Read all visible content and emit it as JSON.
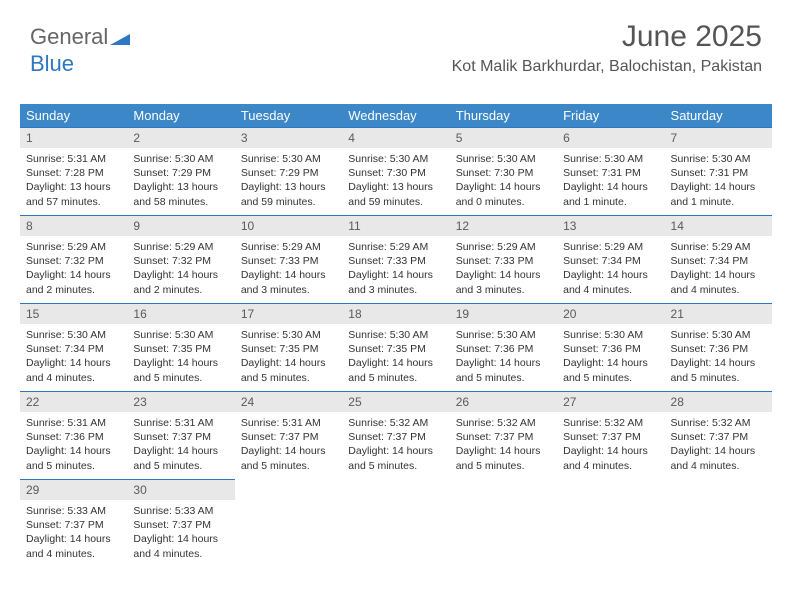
{
  "logo": {
    "text1": "General",
    "text2": "Blue"
  },
  "header": {
    "month": "June 2025",
    "location": "Kot Malik Barkhurdar, Balochistan, Pakistan"
  },
  "colors": {
    "header_bg": "#3b87c8",
    "header_fg": "#ffffff",
    "daynum_bg": "#e8e8e8",
    "daynum_border": "#2e78c2",
    "text": "#333333",
    "logo_gray": "#666666",
    "logo_blue": "#2e78c2"
  },
  "weekdays": [
    "Sunday",
    "Monday",
    "Tuesday",
    "Wednesday",
    "Thursday",
    "Friday",
    "Saturday"
  ],
  "days": [
    {
      "n": "1",
      "sr": "5:31 AM",
      "ss": "7:28 PM",
      "dl": "13 hours and 57 minutes."
    },
    {
      "n": "2",
      "sr": "5:30 AM",
      "ss": "7:29 PM",
      "dl": "13 hours and 58 minutes."
    },
    {
      "n": "3",
      "sr": "5:30 AM",
      "ss": "7:29 PM",
      "dl": "13 hours and 59 minutes."
    },
    {
      "n": "4",
      "sr": "5:30 AM",
      "ss": "7:30 PM",
      "dl": "13 hours and 59 minutes."
    },
    {
      "n": "5",
      "sr": "5:30 AM",
      "ss": "7:30 PM",
      "dl": "14 hours and 0 minutes."
    },
    {
      "n": "6",
      "sr": "5:30 AM",
      "ss": "7:31 PM",
      "dl": "14 hours and 1 minute."
    },
    {
      "n": "7",
      "sr": "5:30 AM",
      "ss": "7:31 PM",
      "dl": "14 hours and 1 minute."
    },
    {
      "n": "8",
      "sr": "5:29 AM",
      "ss": "7:32 PM",
      "dl": "14 hours and 2 minutes."
    },
    {
      "n": "9",
      "sr": "5:29 AM",
      "ss": "7:32 PM",
      "dl": "14 hours and 2 minutes."
    },
    {
      "n": "10",
      "sr": "5:29 AM",
      "ss": "7:33 PM",
      "dl": "14 hours and 3 minutes."
    },
    {
      "n": "11",
      "sr": "5:29 AM",
      "ss": "7:33 PM",
      "dl": "14 hours and 3 minutes."
    },
    {
      "n": "12",
      "sr": "5:29 AM",
      "ss": "7:33 PM",
      "dl": "14 hours and 3 minutes."
    },
    {
      "n": "13",
      "sr": "5:29 AM",
      "ss": "7:34 PM",
      "dl": "14 hours and 4 minutes."
    },
    {
      "n": "14",
      "sr": "5:29 AM",
      "ss": "7:34 PM",
      "dl": "14 hours and 4 minutes."
    },
    {
      "n": "15",
      "sr": "5:30 AM",
      "ss": "7:34 PM",
      "dl": "14 hours and 4 minutes."
    },
    {
      "n": "16",
      "sr": "5:30 AM",
      "ss": "7:35 PM",
      "dl": "14 hours and 5 minutes."
    },
    {
      "n": "17",
      "sr": "5:30 AM",
      "ss": "7:35 PM",
      "dl": "14 hours and 5 minutes."
    },
    {
      "n": "18",
      "sr": "5:30 AM",
      "ss": "7:35 PM",
      "dl": "14 hours and 5 minutes."
    },
    {
      "n": "19",
      "sr": "5:30 AM",
      "ss": "7:36 PM",
      "dl": "14 hours and 5 minutes."
    },
    {
      "n": "20",
      "sr": "5:30 AM",
      "ss": "7:36 PM",
      "dl": "14 hours and 5 minutes."
    },
    {
      "n": "21",
      "sr": "5:30 AM",
      "ss": "7:36 PM",
      "dl": "14 hours and 5 minutes."
    },
    {
      "n": "22",
      "sr": "5:31 AM",
      "ss": "7:36 PM",
      "dl": "14 hours and 5 minutes."
    },
    {
      "n": "23",
      "sr": "5:31 AM",
      "ss": "7:37 PM",
      "dl": "14 hours and 5 minutes."
    },
    {
      "n": "24",
      "sr": "5:31 AM",
      "ss": "7:37 PM",
      "dl": "14 hours and 5 minutes."
    },
    {
      "n": "25",
      "sr": "5:32 AM",
      "ss": "7:37 PM",
      "dl": "14 hours and 5 minutes."
    },
    {
      "n": "26",
      "sr": "5:32 AM",
      "ss": "7:37 PM",
      "dl": "14 hours and 5 minutes."
    },
    {
      "n": "27",
      "sr": "5:32 AM",
      "ss": "7:37 PM",
      "dl": "14 hours and 4 minutes."
    },
    {
      "n": "28",
      "sr": "5:32 AM",
      "ss": "7:37 PM",
      "dl": "14 hours and 4 minutes."
    },
    {
      "n": "29",
      "sr": "5:33 AM",
      "ss": "7:37 PM",
      "dl": "14 hours and 4 minutes."
    },
    {
      "n": "30",
      "sr": "5:33 AM",
      "ss": "7:37 PM",
      "dl": "14 hours and 4 minutes."
    }
  ],
  "labels": {
    "sunrise": "Sunrise: ",
    "sunset": "Sunset: ",
    "daylight": "Daylight: "
  },
  "start_offset": 0,
  "total_cells": 35
}
